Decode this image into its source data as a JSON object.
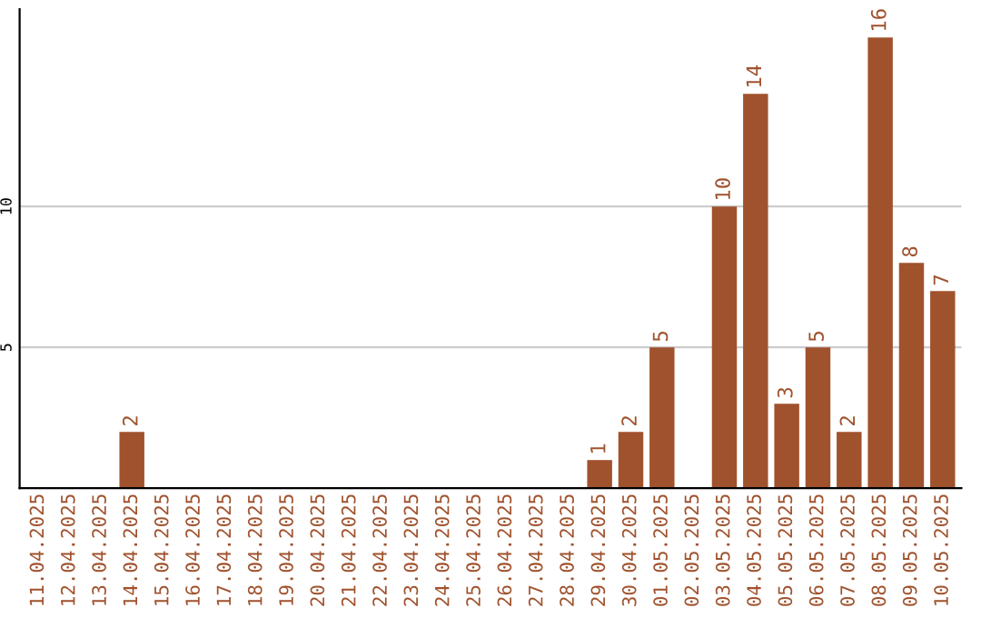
{
  "chart_data": {
    "type": "bar",
    "categories": [
      "11.04.2025",
      "12.04.2025",
      "13.04.2025",
      "14.04.2025",
      "15.04.2025",
      "16.04.2025",
      "17.04.2025",
      "18.04.2025",
      "19.04.2025",
      "20.04.2025",
      "21.04.2025",
      "22.04.2025",
      "23.04.2025",
      "24.04.2025",
      "25.04.2025",
      "26.04.2025",
      "27.04.2025",
      "28.04.2025",
      "29.04.2025",
      "30.04.2025",
      "01.05.2025",
      "02.05.2025",
      "03.05.2025",
      "04.05.2025",
      "05.05.2025",
      "06.05.2025",
      "07.05.2025",
      "08.05.2025",
      "09.05.2025",
      "10.05.2025"
    ],
    "values": [
      0,
      0,
      0,
      2,
      0,
      0,
      0,
      0,
      0,
      0,
      0,
      0,
      0,
      0,
      0,
      0,
      0,
      0,
      1,
      2,
      5,
      0,
      10,
      14,
      3,
      5,
      2,
      16,
      8,
      7
    ],
    "value_labels": [
      null,
      null,
      null,
      "2",
      null,
      null,
      null,
      null,
      null,
      null,
      null,
      null,
      null,
      null,
      null,
      null,
      null,
      null,
      "1",
      "2",
      "5",
      null,
      "10",
      "14",
      "3",
      "5",
      "2",
      "16",
      "8",
      "7"
    ],
    "color": "#a0522d",
    "ylim": [
      0,
      17
    ],
    "yticks": [
      5,
      10
    ],
    "grid": "y",
    "legend": false
  }
}
